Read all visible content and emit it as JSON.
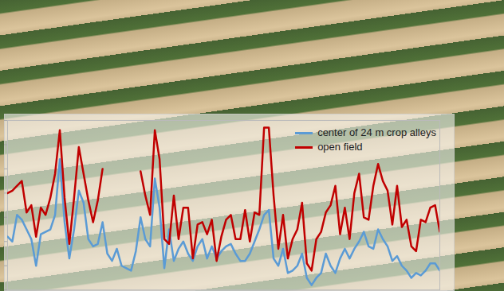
{
  "chart_data": {
    "type": "line",
    "legend": "top-right",
    "tick_labels": false,
    "x": [
      1,
      2,
      3,
      4,
      5,
      6,
      7,
      8,
      9,
      10,
      11,
      12,
      13,
      14,
      15,
      16,
      17,
      18,
      19,
      20,
      21,
      22,
      23,
      24,
      25,
      26,
      27,
      28,
      29,
      30,
      31,
      32,
      33,
      34,
      35,
      36,
      37,
      38,
      39,
      40,
      41,
      42,
      43,
      44,
      45,
      46,
      47,
      48,
      49,
      50,
      51,
      52,
      53,
      54,
      55,
      56,
      57,
      58,
      59,
      60,
      61,
      62,
      63,
      64,
      65,
      66,
      67,
      68,
      69,
      70,
      71,
      72,
      73,
      74,
      75,
      76,
      77,
      78,
      79,
      80,
      81,
      82,
      83,
      84,
      85,
      86,
      87,
      88,
      89,
      90,
      91,
      92
    ],
    "xlim": [
      1,
      92
    ],
    "ylim": [
      0,
      7
    ],
    "yticks": [
      0,
      1,
      2,
      3,
      4,
      5,
      6,
      7
    ],
    "series": [
      {
        "name": "center of 24 m crop alleys",
        "color": "#5b9bd5",
        "values": [
          2.2,
          2.0,
          3.1,
          2.9,
          2.5,
          2.1,
          1.0,
          2.3,
          2.4,
          2.5,
          3.1,
          5.4,
          2.8,
          1.3,
          2.5,
          4.1,
          3.6,
          2.1,
          1.8,
          1.9,
          2.8,
          1.5,
          1.2,
          1.7,
          1.0,
          0.9,
          0.8,
          1.6,
          3.0,
          2.1,
          1.8,
          4.6,
          3.4,
          0.9,
          2.5,
          1.2,
          1.7,
          2.0,
          1.5,
          1.2,
          1.8,
          2.1,
          1.3,
          1.8,
          1.3,
          1.6,
          1.8,
          1.9,
          1.5,
          1.2,
          1.2,
          1.5,
          2.0,
          2.5,
          3.1,
          3.3,
          1.3,
          1.0,
          1.7,
          0.7,
          0.8,
          1.0,
          1.5,
          0.5,
          0.2,
          0.5,
          0.7,
          1.5,
          1.0,
          0.7,
          1.3,
          1.7,
          1.3,
          1.7,
          2.0,
          2.4,
          1.8,
          1.7,
          2.5,
          2.1,
          1.8,
          1.2,
          1.4,
          1.0,
          0.8,
          0.5,
          0.7,
          0.6,
          0.8,
          1.1,
          1.1,
          0.8
        ]
      },
      {
        "name": "open field",
        "color": "#c00000",
        "values": [
          4.0,
          4.1,
          4.3,
          4.5,
          3.2,
          3.5,
          2.2,
          3.4,
          3.1,
          3.8,
          4.8,
          6.6,
          3.8,
          1.9,
          3.8,
          5.9,
          4.8,
          3.7,
          2.8,
          3.7,
          5.0,
          null,
          null,
          null,
          null,
          null,
          null,
          null,
          4.9,
          3.9,
          3.1,
          6.6,
          5.4,
          2.1,
          1.9,
          3.9,
          2.1,
          3.4,
          3.4,
          1.3,
          2.7,
          2.8,
          2.3,
          2.9,
          1.2,
          2.2,
          2.9,
          3.1,
          2.1,
          2.1,
          3.3,
          2.0,
          3.2,
          3.1,
          6.7,
          6.7,
          3.9,
          1.7,
          3.1,
          1.3,
          2.1,
          2.5,
          3.6,
          1.1,
          0.8,
          2.1,
          2.4,
          3.2,
          3.5,
          4.3,
          2.3,
          3.4,
          2.1,
          4.0,
          4.8,
          3.0,
          2.9,
          4.3,
          5.2,
          4.5,
          4.1,
          2.7,
          4.3,
          2.6,
          2.9,
          1.8,
          1.6,
          2.9,
          2.8,
          3.4,
          3.5,
          2.4
        ]
      }
    ]
  }
}
